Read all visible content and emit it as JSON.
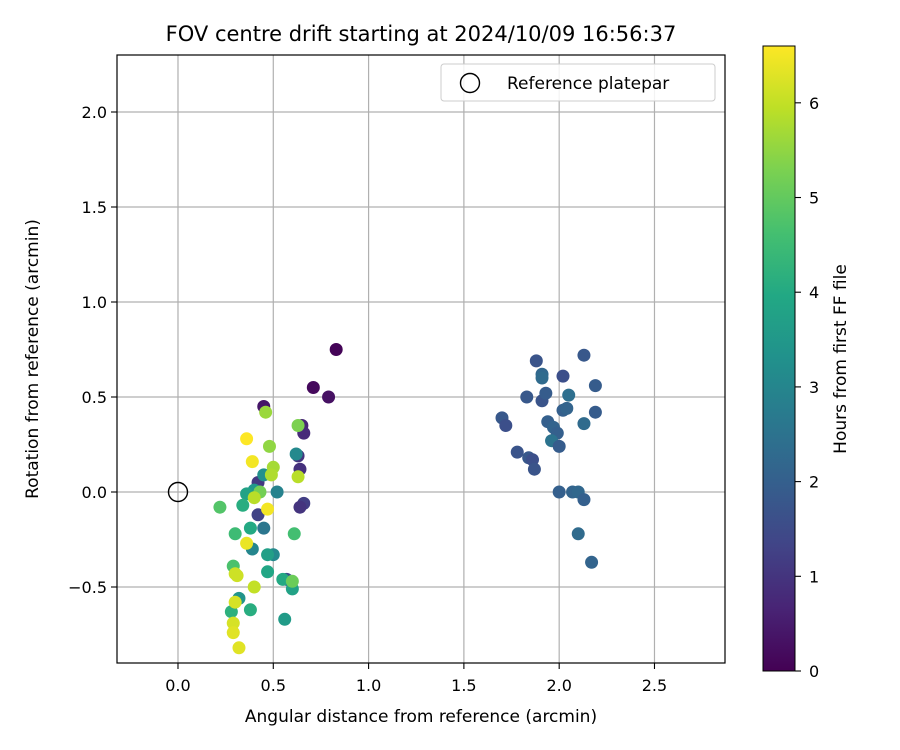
{
  "chart_data": {
    "type": "scatter",
    "title": "FOV centre drift starting at 2024/10/09 16:56:37",
    "xlabel": "Angular distance from reference (arcmin)",
    "ylabel": "Rotation from reference (arcmin)",
    "xlim": [
      -0.32,
      2.87
    ],
    "ylim": [
      -0.9,
      2.3
    ],
    "xticks": [
      0.0,
      0.5,
      1.0,
      1.5,
      2.0,
      2.5
    ],
    "xtick_labels": [
      "0.0",
      "0.5",
      "1.0",
      "1.5",
      "2.0",
      "2.5"
    ],
    "yticks": [
      -0.5,
      0.0,
      0.5,
      1.0,
      1.5,
      2.0
    ],
    "ytick_labels": [
      "−0.5",
      "0.0",
      "0.5",
      "1.0",
      "1.5",
      "2.0"
    ],
    "grid": true,
    "legend": {
      "placement": "top-right",
      "entries": [
        "Reference platepar"
      ]
    },
    "reference_point": {
      "x": 0.0,
      "y": 0.0
    },
    "colorbar": {
      "label": "Hours from first FF file",
      "colormap": "viridis",
      "range": [
        0,
        6.6
      ],
      "ticks": [
        0,
        1,
        2,
        3,
        4,
        5,
        6
      ],
      "tick_labels": [
        "0",
        "1",
        "2",
        "3",
        "4",
        "5",
        "6"
      ]
    },
    "points": [
      {
        "x": 0.83,
        "y": 0.75,
        "h": 0.05
      },
      {
        "x": 0.71,
        "y": 0.55,
        "h": 0.15
      },
      {
        "x": 0.79,
        "y": 0.5,
        "h": 0.3
      },
      {
        "x": 0.45,
        "y": 0.45,
        "h": 0.4
      },
      {
        "x": 0.65,
        "y": 0.35,
        "h": 0.7
      },
      {
        "x": 0.66,
        "y": 0.31,
        "h": 0.8
      },
      {
        "x": 0.63,
        "y": 0.19,
        "h": 1.0
      },
      {
        "x": 0.64,
        "y": 0.12,
        "h": 0.9
      },
      {
        "x": 0.42,
        "y": 0.05,
        "h": 1.1
      },
      {
        "x": 0.66,
        "y": -0.06,
        "h": 1.2
      },
      {
        "x": 0.64,
        "y": -0.08,
        "h": 1.0
      },
      {
        "x": 0.42,
        "y": -0.12,
        "h": 1.3
      },
      {
        "x": 0.57,
        "y": -0.46,
        "h": 1.6
      },
      {
        "x": 0.45,
        "y": -0.19,
        "h": 2.6
      },
      {
        "x": 0.52,
        "y": 0.0,
        "h": 2.9
      },
      {
        "x": 0.62,
        "y": 0.2,
        "h": 3.1
      },
      {
        "x": 0.45,
        "y": 0.09,
        "h": 3.3
      },
      {
        "x": 0.39,
        "y": -0.3,
        "h": 3.0
      },
      {
        "x": 0.5,
        "y": -0.33,
        "h": 3.1
      },
      {
        "x": 0.32,
        "y": -0.56,
        "h": 3.4
      },
      {
        "x": 0.4,
        "y": 0.01,
        "h": 3.5
      },
      {
        "x": 0.47,
        "y": -0.33,
        "h": 3.7
      },
      {
        "x": 0.56,
        "y": -0.67,
        "h": 3.6
      },
      {
        "x": 0.36,
        "y": -0.01,
        "h": 3.8
      },
      {
        "x": 0.38,
        "y": -0.19,
        "h": 4.0
      },
      {
        "x": 0.34,
        "y": -0.07,
        "h": 4.1
      },
      {
        "x": 0.47,
        "y": -0.42,
        "h": 3.9
      },
      {
        "x": 0.55,
        "y": -0.46,
        "h": 4.0
      },
      {
        "x": 0.6,
        "y": -0.51,
        "h": 3.8
      },
      {
        "x": 0.28,
        "y": -0.63,
        "h": 4.2
      },
      {
        "x": 0.38,
        "y": -0.62,
        "h": 4.1
      },
      {
        "x": 0.3,
        "y": -0.22,
        "h": 4.5
      },
      {
        "x": 0.61,
        "y": -0.22,
        "h": 4.6
      },
      {
        "x": 0.29,
        "y": -0.39,
        "h": 4.7
      },
      {
        "x": 0.22,
        "y": -0.08,
        "h": 4.8
      },
      {
        "x": 0.43,
        "y": 0.0,
        "h": 5.2
      },
      {
        "x": 0.6,
        "y": -0.47,
        "h": 5.1
      },
      {
        "x": 0.48,
        "y": 0.24,
        "h": 5.5
      },
      {
        "x": 0.46,
        "y": 0.42,
        "h": 5.6
      },
      {
        "x": 0.63,
        "y": 0.35,
        "h": 5.3
      },
      {
        "x": 0.5,
        "y": 0.13,
        "h": 5.7
      },
      {
        "x": 0.49,
        "y": 0.09,
        "h": 5.8
      },
      {
        "x": 0.63,
        "y": 0.08,
        "h": 5.9
      },
      {
        "x": 0.4,
        "y": -0.03,
        "h": 5.9
      },
      {
        "x": 0.4,
        "y": -0.5,
        "h": 6.0
      },
      {
        "x": 0.31,
        "y": -0.44,
        "h": 6.1
      },
      {
        "x": 0.3,
        "y": -0.43,
        "h": 6.1
      },
      {
        "x": 0.3,
        "y": -0.58,
        "h": 6.2
      },
      {
        "x": 0.29,
        "y": -0.69,
        "h": 6.2
      },
      {
        "x": 0.29,
        "y": -0.74,
        "h": 6.3
      },
      {
        "x": 0.32,
        "y": -0.82,
        "h": 6.3
      },
      {
        "x": 0.36,
        "y": -0.27,
        "h": 6.4
      },
      {
        "x": 0.47,
        "y": -0.09,
        "h": 6.5
      },
      {
        "x": 0.39,
        "y": 0.16,
        "h": 6.5
      },
      {
        "x": 0.36,
        "y": 0.28,
        "h": 6.6
      },
      {
        "x": 1.88,
        "y": 0.69,
        "h": 1.7
      },
      {
        "x": 2.13,
        "y": 0.72,
        "h": 1.8
      },
      {
        "x": 1.91,
        "y": 0.62,
        "h": 2.2
      },
      {
        "x": 1.91,
        "y": 0.6,
        "h": 2.3
      },
      {
        "x": 2.02,
        "y": 0.61,
        "h": 1.6
      },
      {
        "x": 2.19,
        "y": 0.56,
        "h": 1.9
      },
      {
        "x": 1.83,
        "y": 0.5,
        "h": 1.8
      },
      {
        "x": 1.91,
        "y": 0.48,
        "h": 1.7
      },
      {
        "x": 1.93,
        "y": 0.52,
        "h": 1.9
      },
      {
        "x": 2.05,
        "y": 0.51,
        "h": 2.4
      },
      {
        "x": 2.02,
        "y": 0.43,
        "h": 2.0
      },
      {
        "x": 2.04,
        "y": 0.44,
        "h": 2.1
      },
      {
        "x": 2.19,
        "y": 0.42,
        "h": 1.9
      },
      {
        "x": 1.7,
        "y": 0.39,
        "h": 1.8
      },
      {
        "x": 1.72,
        "y": 0.35,
        "h": 1.6
      },
      {
        "x": 1.94,
        "y": 0.37,
        "h": 2.0
      },
      {
        "x": 1.97,
        "y": 0.34,
        "h": 2.1
      },
      {
        "x": 1.99,
        "y": 0.31,
        "h": 2.0
      },
      {
        "x": 2.13,
        "y": 0.36,
        "h": 2.3
      },
      {
        "x": 1.96,
        "y": 0.27,
        "h": 2.5
      },
      {
        "x": 2.0,
        "y": 0.24,
        "h": 1.9
      },
      {
        "x": 1.78,
        "y": 0.21,
        "h": 1.7
      },
      {
        "x": 1.84,
        "y": 0.18,
        "h": 1.8
      },
      {
        "x": 1.86,
        "y": 0.17,
        "h": 1.6
      },
      {
        "x": 1.87,
        "y": 0.12,
        "h": 1.7
      },
      {
        "x": 2.0,
        "y": 0.0,
        "h": 2.0
      },
      {
        "x": 2.07,
        "y": 0.0,
        "h": 2.1
      },
      {
        "x": 2.1,
        "y": 0.0,
        "h": 2.2
      },
      {
        "x": 2.13,
        "y": -0.04,
        "h": 2.0
      },
      {
        "x": 2.1,
        "y": -0.22,
        "h": 2.3
      },
      {
        "x": 2.17,
        "y": -0.37,
        "h": 2.1
      }
    ]
  }
}
